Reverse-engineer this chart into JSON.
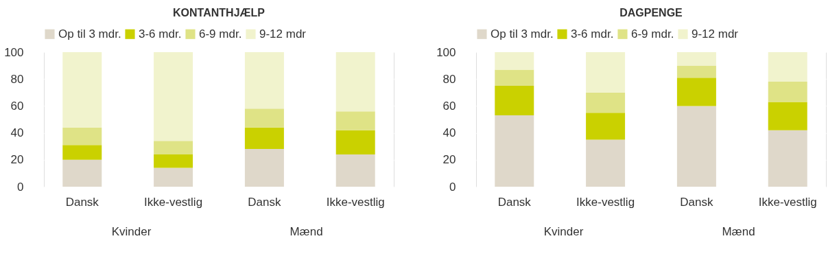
{
  "chart_data": [
    {
      "type": "bar",
      "title": "KONTANTHJÆLP",
      "stacked": true,
      "categories": [
        "Dansk",
        "Ikke-vestlig",
        "Dansk",
        "Ikke-vestlig"
      ],
      "annotations": [
        "Kvinder",
        "Mænd"
      ],
      "ylim": [
        0,
        100
      ],
      "yticks": [
        0,
        20,
        40,
        60,
        80,
        100
      ],
      "grid": "y",
      "legend": "top",
      "series": [
        {
          "name": "Op til 3 mdr.",
          "color": "#dfd8ca",
          "values": [
            20,
            14,
            28,
            24
          ]
        },
        {
          "name": "3-6 mdr.",
          "color": "#cad100",
          "values": [
            11,
            10,
            16,
            18
          ]
        },
        {
          "name": "6-9 mdr.",
          "color": "#dfe386",
          "values": [
            13,
            10,
            14,
            14
          ]
        },
        {
          "name": "9-12 mdr",
          "color": "#f1f3cd",
          "values": [
            56,
            66,
            42,
            44
          ]
        }
      ]
    },
    {
      "type": "bar",
      "title": "DAGPENGE",
      "stacked": true,
      "categories": [
        "Dansk",
        "Ikke-vestlig",
        "Dansk",
        "Ikke-vestlig"
      ],
      "annotations": [
        "Kvinder",
        "Mænd"
      ],
      "ylim": [
        0,
        100
      ],
      "yticks": [
        0,
        20,
        40,
        60,
        80,
        100
      ],
      "grid": "y",
      "legend": "top",
      "series": [
        {
          "name": "Op til 3 mdr.",
          "color": "#dfd8ca",
          "values": [
            53,
            35,
            60,
            42
          ]
        },
        {
          "name": "3-6 mdr.",
          "color": "#cad100",
          "values": [
            22,
            20,
            21,
            21
          ]
        },
        {
          "name": "6-9 mdr.",
          "color": "#dfe386",
          "values": [
            12,
            15,
            9,
            15
          ]
        },
        {
          "name": "9-12 mdr",
          "color": "#f1f3cd",
          "values": [
            13,
            30,
            10,
            22
          ]
        }
      ]
    }
  ]
}
